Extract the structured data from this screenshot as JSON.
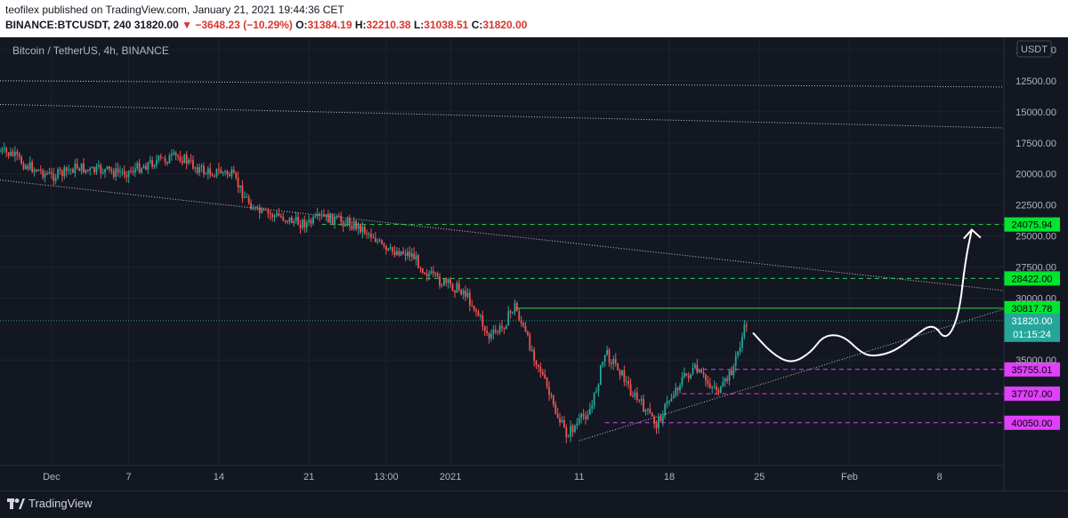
{
  "header": {
    "published_line": "teofilex published on TradingView.com, January 21, 2021 19:44:36 CET",
    "symbol": "BINANCE:BTCUSDT",
    "interval": "240",
    "last": "31820.00",
    "change": "−3648.23 (−10.29%)",
    "ohlc": {
      "o_label": "O:",
      "o": "31384.19",
      "h_label": "H:",
      "h": "32210.38",
      "l_label": "L:",
      "l": "31038.51",
      "c_label": "C:",
      "c": "31820.00"
    }
  },
  "chart_data": {
    "type": "candlestick",
    "title": "Bitcoin / TetherUS, 4h, BINANCE",
    "currency": "USDT",
    "y_inverted": true,
    "ylim": [
      9000,
      43500
    ],
    "yticks": [
      "10000.00",
      "12500.00",
      "15000.00",
      "17500.00",
      "20000.00",
      "22500.00",
      "25000.00",
      "27500.00",
      "30000.00",
      "35000.00"
    ],
    "ytick_values": [
      10000,
      12500,
      15000,
      17500,
      20000,
      22500,
      25000,
      27500,
      30000,
      35000
    ],
    "xlim": [
      -4,
      74
    ],
    "xticks": [
      {
        "label": "Dec",
        "day": 0
      },
      {
        "label": "7",
        "day": 6
      },
      {
        "label": "14",
        "day": 13
      },
      {
        "label": "21",
        "day": 20
      },
      {
        "label": "13:00",
        "day": 26
      },
      {
        "label": "2021",
        "day": 31
      },
      {
        "label": "11",
        "day": 41
      },
      {
        "label": "18",
        "day": 48
      },
      {
        "label": "25",
        "day": 55
      },
      {
        "label": "Feb",
        "day": 62
      },
      {
        "label": "8",
        "day": 69
      }
    ],
    "price_path": [
      [
        -4,
        18200
      ],
      [
        -3,
        18500
      ],
      [
        -2,
        19300
      ],
      [
        -1,
        19700
      ],
      [
        0,
        20200
      ],
      [
        1,
        19900
      ],
      [
        2,
        19400
      ],
      [
        3,
        19800
      ],
      [
        4,
        19700
      ],
      [
        5,
        19900
      ],
      [
        6,
        19800
      ],
      [
        7,
        19400
      ],
      [
        8,
        19000
      ],
      [
        9,
        18800
      ],
      [
        10,
        18600
      ],
      [
        11,
        19300
      ],
      [
        12,
        19900
      ],
      [
        13,
        19800
      ],
      [
        14,
        20100
      ],
      [
        15,
        21800
      ],
      [
        16,
        23100
      ],
      [
        17,
        23300
      ],
      [
        18,
        23500
      ],
      [
        19,
        23900
      ],
      [
        20,
        24000
      ],
      [
        21,
        23500
      ],
      [
        22,
        23700
      ],
      [
        23,
        23900
      ],
      [
        24,
        24300
      ],
      [
        25,
        25000
      ],
      [
        26,
        26300
      ],
      [
        27,
        26200
      ],
      [
        28,
        26500
      ],
      [
        29,
        27800
      ],
      [
        30,
        28600
      ],
      [
        31,
        29000
      ],
      [
        32,
        29400
      ],
      [
        33,
        31000
      ],
      [
        34,
        33200
      ],
      [
        35,
        32400
      ],
      [
        36,
        30600
      ],
      [
        37,
        33400
      ],
      [
        38,
        35800
      ],
      [
        39,
        38800
      ],
      [
        40,
        41000
      ],
      [
        41,
        40000
      ],
      [
        42,
        38700
      ],
      [
        43,
        34400
      ],
      [
        44,
        35500
      ],
      [
        45,
        37500
      ],
      [
        46,
        38800
      ],
      [
        47,
        40200
      ],
      [
        48,
        38200
      ],
      [
        49,
        36500
      ],
      [
        50,
        35800
      ],
      [
        51,
        36800
      ],
      [
        52,
        37500
      ],
      [
        53,
        35500
      ],
      [
        54,
        32000
      ]
    ],
    "projection": [
      [
        54.5,
        32800
      ],
      [
        56,
        34500
      ],
      [
        57.5,
        35300
      ],
      [
        59,
        34400
      ],
      [
        60,
        33000
      ],
      [
        61.5,
        33000
      ],
      [
        63,
        34500
      ],
      [
        64,
        34700
      ],
      [
        65.5,
        34300
      ],
      [
        67,
        33100
      ],
      [
        68.5,
        32000
      ],
      [
        69.5,
        33500
      ],
      [
        70.5,
        31500
      ],
      [
        71,
        27000
      ],
      [
        71.5,
        24500
      ]
    ],
    "levels": [
      {
        "value": 24075.94,
        "label": "24075.94",
        "color": "#2fd34a",
        "bg": "#00e62e",
        "style": "dashed",
        "from_day": 21
      },
      {
        "value": 28422.0,
        "label": "28422.00",
        "color": "#2fd34a",
        "bg": "#00e62e",
        "style": "dashed",
        "from_day": 26
      },
      {
        "value": 30817.78,
        "label": "30817.78",
        "color": "#2fd34a",
        "bg": "#00e62e",
        "style": "solid",
        "from_day": 36
      },
      {
        "value": 35755.01,
        "label": "35755.01",
        "color": "#e040fb",
        "bg": "#e040fb",
        "style": "dashed",
        "from_day": 50
      },
      {
        "value": 37707.0,
        "label": "37707.00",
        "color": "#e040fb",
        "bg": "#e040fb",
        "style": "dashed",
        "from_day": 49
      },
      {
        "value": 40050.0,
        "label": "40050.00",
        "color": "#e040fb",
        "bg": "#e040fb",
        "style": "dashed",
        "from_day": 43
      }
    ],
    "last_price": {
      "value": 31820.0,
      "label": "31820.00",
      "countdown": "01:15:24",
      "bg": "#26a69a"
    },
    "trendlines": [
      {
        "from": [
          -4,
          12500
        ],
        "to": [
          74,
          13000
        ]
      },
      {
        "from": [
          -4,
          14400
        ],
        "to": [
          74,
          16300
        ]
      },
      {
        "from": [
          -4,
          20500
        ],
        "to": [
          74,
          29400
        ]
      },
      {
        "from": [
          41,
          41500
        ],
        "to": [
          74,
          30900
        ]
      }
    ],
    "colors": {
      "up": "#26a69a",
      "down": "#ef5350",
      "bg": "#131722",
      "grid": "#1e222d",
      "text": "#b2b5be"
    }
  },
  "footer": {
    "brand": "TradingView"
  }
}
